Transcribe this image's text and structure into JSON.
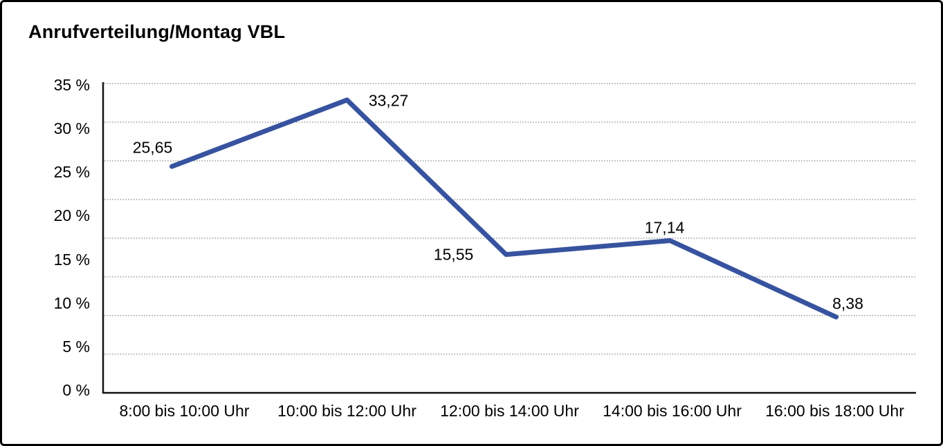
{
  "title": "Anrufverteilung/Montag VBL",
  "chart_data": {
    "type": "line",
    "title": "Anrufverteilung/Montag VBL",
    "categories": [
      "8:00 bis 10:00 Uhr",
      "10:00 bis 12:00 Uhr",
      "12:00 bis 14:00 Uhr",
      "14:00 bis 16:00 Uhr",
      "16:00 bis 18:00 Uhr"
    ],
    "values": [
      25.65,
      33.27,
      15.55,
      17.14,
      8.38
    ],
    "value_labels": [
      "25,65",
      "33,27",
      "15,55",
      "17,14",
      "8,38"
    ],
    "yticks": [
      {
        "value": 35,
        "label": "35 %"
      },
      {
        "value": 30,
        "label": "30 %"
      },
      {
        "value": 25,
        "label": "25 %"
      },
      {
        "value": 20,
        "label": "20 %"
      },
      {
        "value": 15,
        "label": "15 %"
      },
      {
        "value": 10,
        "label": "10 %"
      },
      {
        "value": 5,
        "label": "5 %"
      },
      {
        "value": 0,
        "label": "0 %"
      }
    ],
    "ylim": [
      0,
      35
    ],
    "xlabel": "",
    "ylabel": "",
    "legend": "none",
    "grid": "horizontal-dotted",
    "line_color": "#37539F",
    "axis_color": "#111111",
    "gridline_color": "#666666",
    "text_color": "#000000",
    "background": "#ffffff",
    "border_color": "#000000"
  }
}
